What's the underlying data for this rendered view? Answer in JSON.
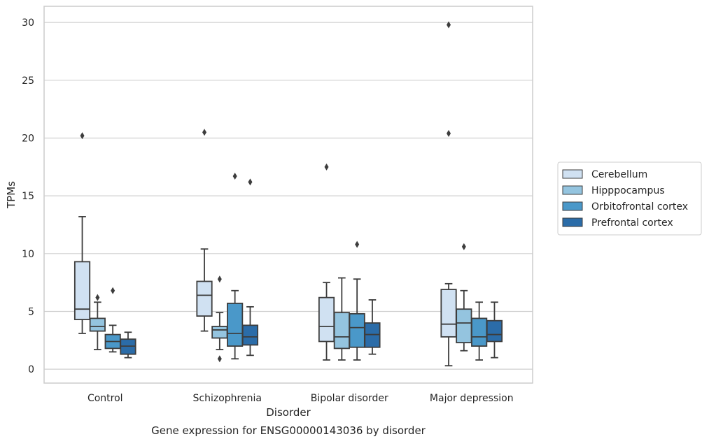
{
  "chart_data": {
    "type": "boxplot",
    "title": "Gene expression for ENSG00000143036 by disorder",
    "xlabel": "Disorder",
    "ylabel": "TPMs",
    "ylim": [
      -1.2,
      31.4
    ],
    "yticks": [
      0,
      5,
      10,
      15,
      20,
      25,
      30
    ],
    "grid": true,
    "legend_position": "outside-right",
    "categories": [
      "Control",
      "Schizophrenia",
      "Bipolar disorder",
      "Major depression"
    ],
    "series": [
      {
        "name": "Cerebellum",
        "color": "#d0e1f2",
        "boxes": [
          {
            "whisker_low": 3.1,
            "q1": 4.3,
            "median": 5.2,
            "q3": 9.3,
            "whisker_high": 13.2,
            "outliers": [
              20.2
            ]
          },
          {
            "whisker_low": 3.3,
            "q1": 4.6,
            "median": 6.4,
            "q3": 7.6,
            "whisker_high": 10.4,
            "outliers": [
              20.5
            ]
          },
          {
            "whisker_low": 0.8,
            "q1": 2.4,
            "median": 3.7,
            "q3": 6.2,
            "whisker_high": 7.5,
            "outliers": [
              17.5
            ]
          },
          {
            "whisker_low": 0.3,
            "q1": 2.8,
            "median": 3.9,
            "q3": 6.9,
            "whisker_high": 7.4,
            "outliers": [
              29.8,
              20.4
            ]
          }
        ]
      },
      {
        "name": "Hipppocampus",
        "color": "#94c4df",
        "boxes": [
          {
            "whisker_low": 1.7,
            "q1": 3.3,
            "median": 3.7,
            "q3": 4.4,
            "whisker_high": 5.8,
            "outliers": [
              6.2
            ]
          },
          {
            "whisker_low": 1.7,
            "q1": 2.7,
            "median": 3.4,
            "q3": 3.7,
            "whisker_high": 4.9,
            "outliers": [
              7.8,
              0.9
            ]
          },
          {
            "whisker_low": 0.8,
            "q1": 1.8,
            "median": 2.8,
            "q3": 4.9,
            "whisker_high": 7.9,
            "outliers": []
          },
          {
            "whisker_low": 1.6,
            "q1": 2.3,
            "median": 4.0,
            "q3": 5.2,
            "whisker_high": 6.8,
            "outliers": [
              10.6
            ]
          }
        ]
      },
      {
        "name": "Orbitofrontal cortex",
        "color": "#4a98c9",
        "boxes": [
          {
            "whisker_low": 1.5,
            "q1": 1.8,
            "median": 2.4,
            "q3": 3.0,
            "whisker_high": 3.8,
            "outliers": [
              6.8
            ]
          },
          {
            "whisker_low": 0.9,
            "q1": 2.0,
            "median": 3.1,
            "q3": 5.7,
            "whisker_high": 6.8,
            "outliers": [
              16.7
            ]
          },
          {
            "whisker_low": 0.8,
            "q1": 1.9,
            "median": 3.6,
            "q3": 4.8,
            "whisker_high": 7.8,
            "outliers": [
              10.8
            ]
          },
          {
            "whisker_low": 0.8,
            "q1": 2.0,
            "median": 2.8,
            "q3": 4.4,
            "whisker_high": 5.8,
            "outliers": []
          }
        ]
      },
      {
        "name": "Prefrontal cortex",
        "color": "#2b6ca8",
        "boxes": [
          {
            "whisker_low": 1.0,
            "q1": 1.3,
            "median": 2.0,
            "q3": 2.6,
            "whisker_high": 3.2,
            "outliers": []
          },
          {
            "whisker_low": 1.2,
            "q1": 2.1,
            "median": 2.8,
            "q3": 3.8,
            "whisker_high": 5.4,
            "outliers": [
              16.2
            ]
          },
          {
            "whisker_low": 1.3,
            "q1": 1.9,
            "median": 3.0,
            "q3": 4.0,
            "whisker_high": 6.0,
            "outliers": []
          },
          {
            "whisker_low": 1.0,
            "q1": 2.4,
            "median": 3.0,
            "q3": 4.2,
            "whisker_high": 5.8,
            "outliers": []
          }
        ]
      }
    ]
  }
}
